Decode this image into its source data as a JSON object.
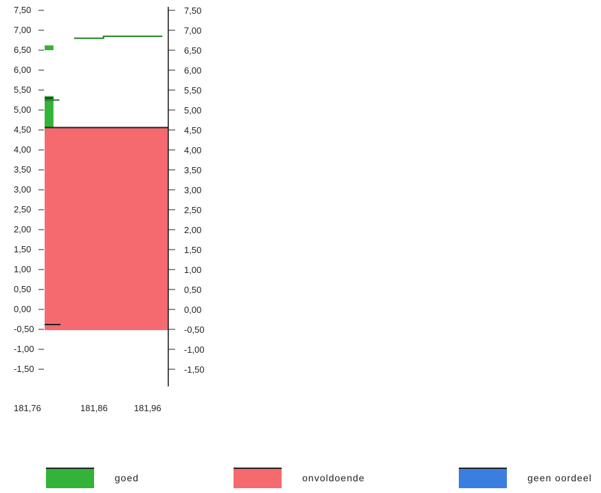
{
  "chart_data": {
    "type": "bar",
    "x_ticks": [
      "181,76",
      "181,86",
      "181,96"
    ],
    "xlim": [
      181.76,
      181.97
    ],
    "ylim": [
      -1.5,
      7.5
    ],
    "y_ticks": [
      {
        "value": 7.5,
        "label": "7,50"
      },
      {
        "value": 7.0,
        "label": "7,00"
      },
      {
        "value": 6.5,
        "label": "6,50"
      },
      {
        "value": 6.0,
        "label": "6,00"
      },
      {
        "value": 5.5,
        "label": "5,50"
      },
      {
        "value": 5.0,
        "label": "5,00"
      },
      {
        "value": 4.5,
        "label": "4,50"
      },
      {
        "value": 4.0,
        "label": "4,00"
      },
      {
        "value": 3.5,
        "label": "3,50"
      },
      {
        "value": 3.0,
        "label": "3,00"
      },
      {
        "value": 2.5,
        "label": "2,50"
      },
      {
        "value": 2.0,
        "label": "2,00"
      },
      {
        "value": 1.5,
        "label": "1,50"
      },
      {
        "value": 1.0,
        "label": "1,00"
      },
      {
        "value": 0.5,
        "label": "0,50"
      },
      {
        "value": 0.0,
        "label": "0,00"
      },
      {
        "value": -0.5,
        "label": "-0,50"
      },
      {
        "value": -1.0,
        "label": "-1,00"
      },
      {
        "value": -1.5,
        "label": "-1,50"
      }
    ],
    "bars": [
      {
        "series": "onvoldoende",
        "x0": 181.76,
        "x1": 181.97,
        "y0": -0.52,
        "y1": 4.56
      },
      {
        "series": "goed",
        "x0": 181.76,
        "x1": 181.775,
        "y0": 4.56,
        "y1": 5.35
      },
      {
        "series": "goed",
        "x0": 181.76,
        "x1": 181.775,
        "y0": 6.5,
        "y1": 6.62
      }
    ],
    "lines": [
      {
        "color": "#1a7f1a",
        "points": [
          [
            181.81,
            6.8
          ],
          [
            181.86,
            6.8
          ],
          [
            181.86,
            6.85
          ],
          [
            181.96,
            6.85
          ]
        ]
      },
      {
        "color": "#1a7f1a",
        "points": [
          [
            181.76,
            5.25
          ],
          [
            181.785,
            5.25
          ]
        ]
      },
      {
        "color": "#222222",
        "points": [
          [
            181.76,
            4.56
          ],
          [
            181.97,
            4.56
          ]
        ]
      },
      {
        "color": "#222222",
        "points": [
          [
            181.76,
            5.3
          ],
          [
            181.775,
            5.3
          ]
        ]
      },
      {
        "color": "#222222",
        "points": [
          [
            181.76,
            -0.38
          ],
          [
            181.787,
            -0.38
          ]
        ]
      }
    ]
  },
  "legend": [
    {
      "label": "goed",
      "color": "#33b33a"
    },
    {
      "label": "onvoldoende",
      "color": "#f46a6e"
    },
    {
      "label": "geen oordeel",
      "color": "#3a7fe0"
    }
  ]
}
